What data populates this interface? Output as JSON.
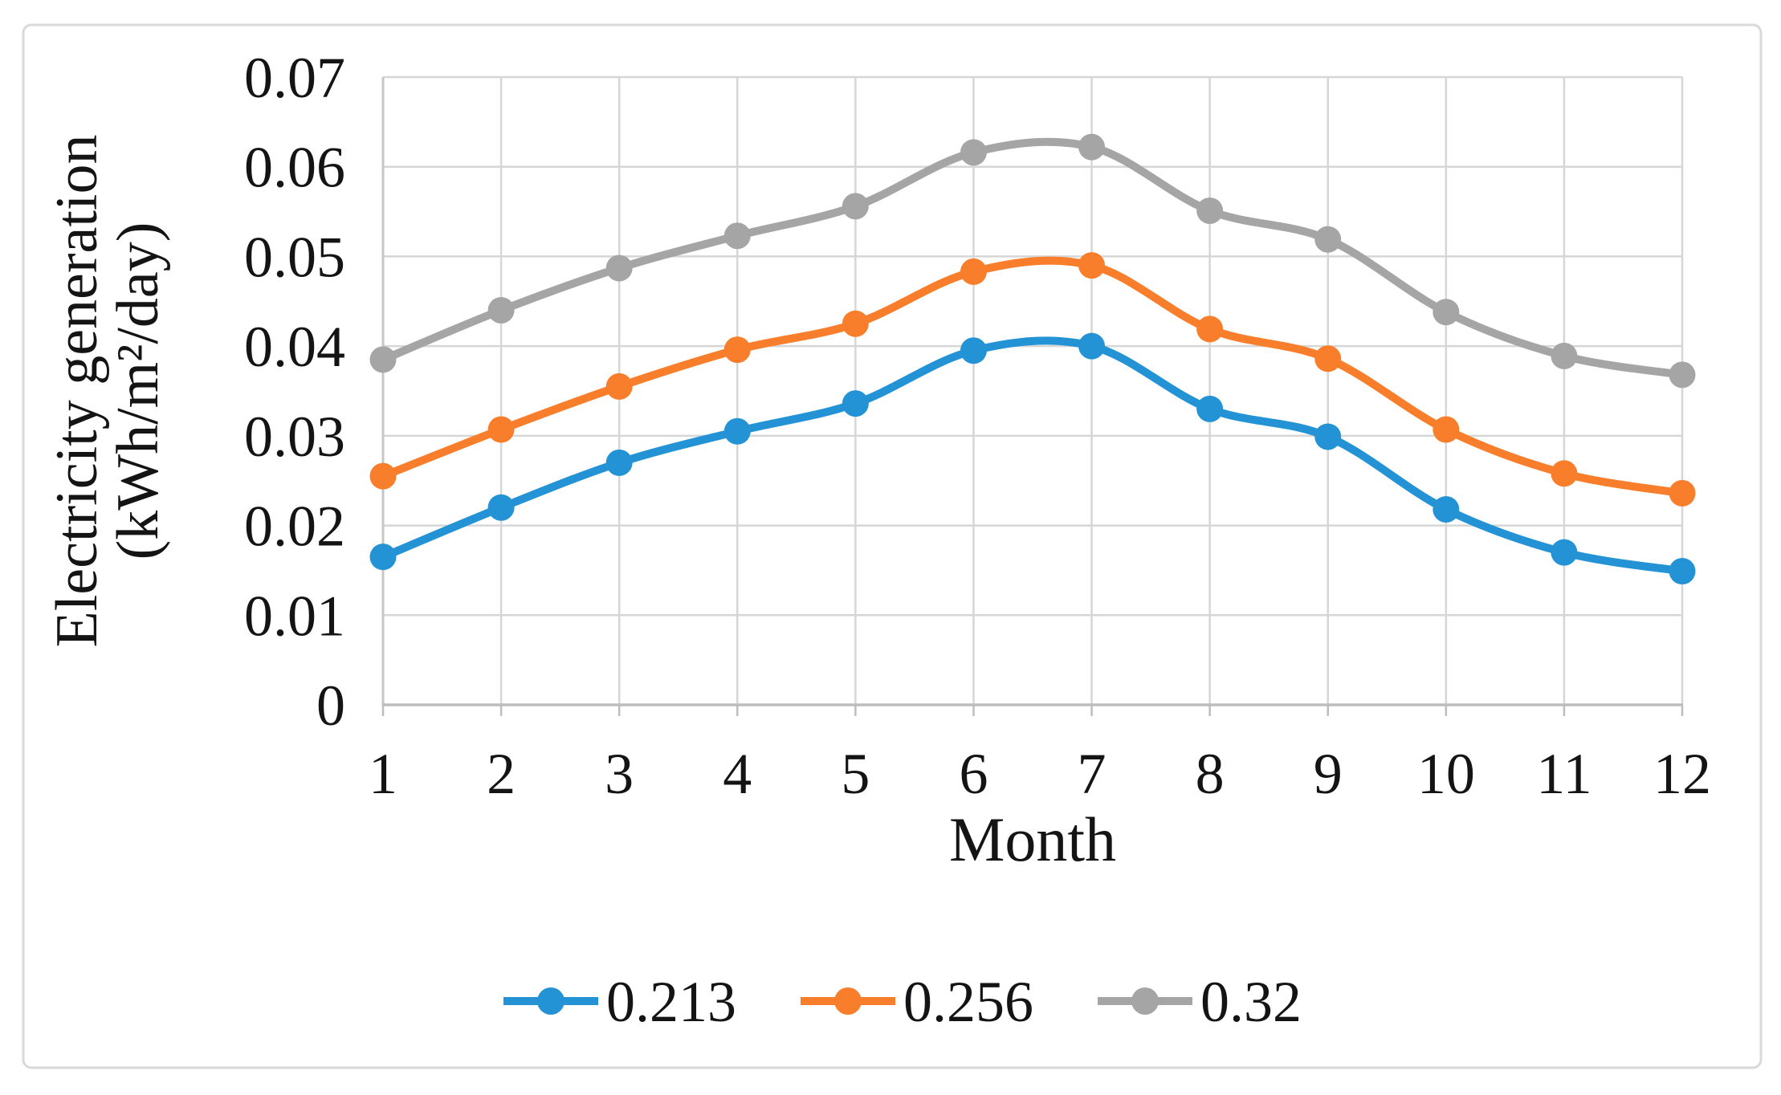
{
  "figure": {
    "background": "#ffffff",
    "border_color": "#d9d9d9"
  },
  "chart_data": {
    "type": "line",
    "title": "",
    "x": [
      "1",
      "2",
      "3",
      "4",
      "5",
      "6",
      "7",
      "8",
      "9",
      "10",
      "11",
      "12"
    ],
    "xlabel": "Month",
    "ylabel_line1": "Electricity generation",
    "ylabel_line2": "(kWh/m²/day)",
    "ylim": [
      0,
      0.07
    ],
    "ytick_step": 0.01,
    "y_tick_labels": [
      "0",
      "0.01",
      "0.02",
      "0.03",
      "0.04",
      "0.05",
      "0.06",
      "0.07"
    ],
    "grid": true,
    "line_smoothing": true,
    "legend_position": "bottom-center",
    "colors": {
      "gridline": "#d6d6d6",
      "axis": "#bdbdbd",
      "text": "#141414"
    },
    "series": [
      {
        "name": "0.213",
        "color": "#2493d5",
        "values": [
          0.0165,
          0.022,
          0.027,
          0.0305,
          0.0336,
          0.0395,
          0.04,
          0.033,
          0.0299,
          0.0218,
          0.017,
          0.0149
        ]
      },
      {
        "name": "0.256",
        "color": "#f87e2c",
        "values": [
          0.0255,
          0.0307,
          0.0355,
          0.0396,
          0.0425,
          0.0483,
          0.049,
          0.0419,
          0.0386,
          0.0307,
          0.0258,
          0.0236
        ]
      },
      {
        "name": "0.32",
        "color": "#a5a5a5",
        "values": [
          0.0385,
          0.044,
          0.0487,
          0.0523,
          0.0556,
          0.0616,
          0.0622,
          0.0551,
          0.0519,
          0.0438,
          0.0389,
          0.0368
        ]
      }
    ]
  }
}
